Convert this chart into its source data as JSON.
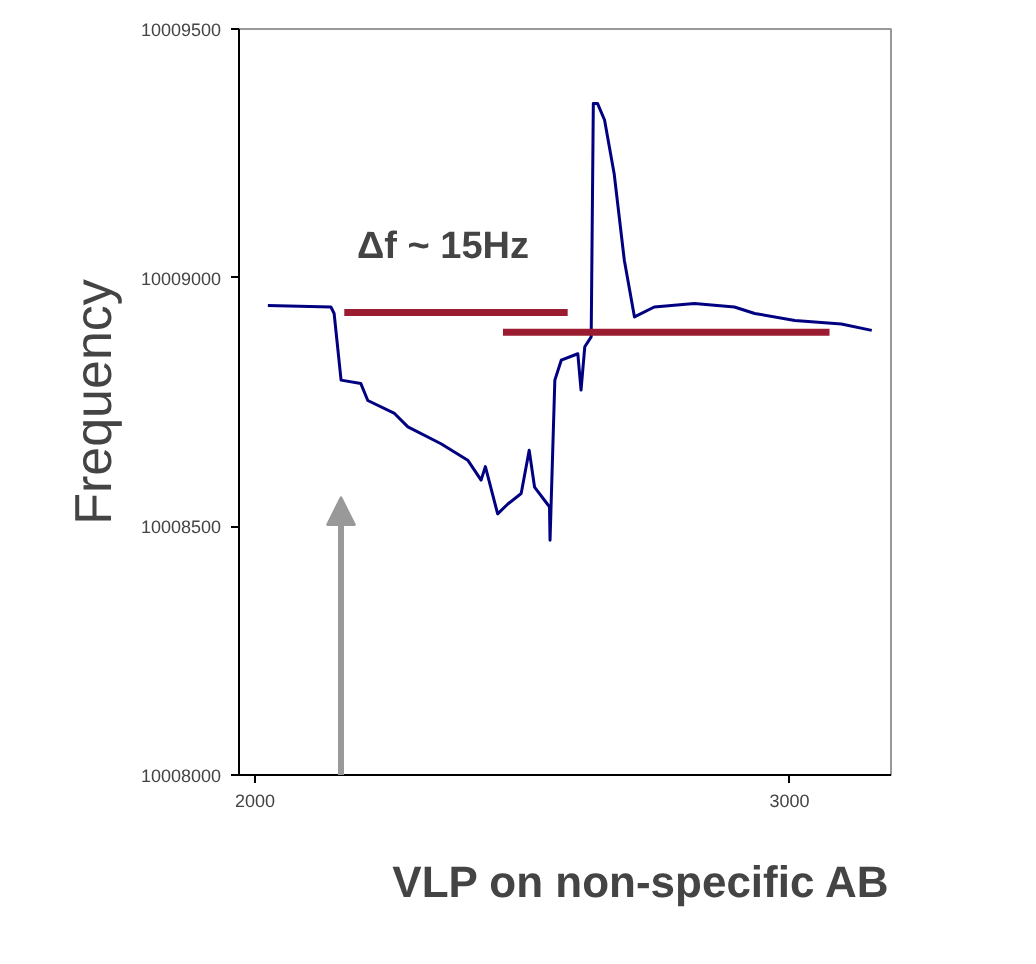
{
  "chart_data": {
    "type": "line",
    "ylabel": "Frequency",
    "xlim": [
      1970,
      3190
    ],
    "xticks": [
      2000,
      3000
    ],
    "ylim": [
      10008000,
      10009500
    ],
    "yticks": [
      10008000,
      10008500,
      10009000,
      10009500
    ],
    "grid": false,
    "marker": "none",
    "line_style": "solid",
    "series": [
      {
        "color": "#000080",
        "x": [
          2024,
          2142,
          2148,
          2161,
          2198,
          2211,
          2261,
          2286,
          2348,
          2398,
          2423,
          2431,
          2454,
          2473,
          2498,
          2513,
          2523,
          2542,
          2551,
          2552,
          2561,
          2573,
          2604,
          2610,
          2617,
          2629,
          2633,
          2641,
          2654,
          2672,
          2691,
          2710,
          2747,
          2822,
          2897,
          2935,
          3010,
          3097,
          3154
        ],
        "values": [
          10008944,
          10008941,
          10008928,
          10008794,
          10008787,
          10008753,
          10008727,
          10008700,
          10008666,
          10008633,
          10008593,
          10008620,
          10008525,
          10008545,
          10008566,
          10008653,
          10008579,
          10008552,
          10008539,
          10008472,
          10008794,
          10008834,
          10008847,
          10008774,
          10008861,
          10008881,
          10009350,
          10009350,
          10009317,
          10009209,
          10009035,
          10008921,
          10008941,
          10008948,
          10008941,
          10008928,
          10008914,
          10008907,
          10008894
        ]
      },
      {
        "color": "#9b1b30",
        "x": [
          2167,
          2585
        ],
        "values": [
          10008930,
          10008930
        ]
      },
      {
        "color": "#9b1b30",
        "x": [
          2464,
          3075
        ],
        "values": [
          10008890,
          10008890
        ]
      }
    ],
    "annotations": [
      "Δf ~ 15Hz",
      "VLP on non-specific AB"
    ]
  }
}
